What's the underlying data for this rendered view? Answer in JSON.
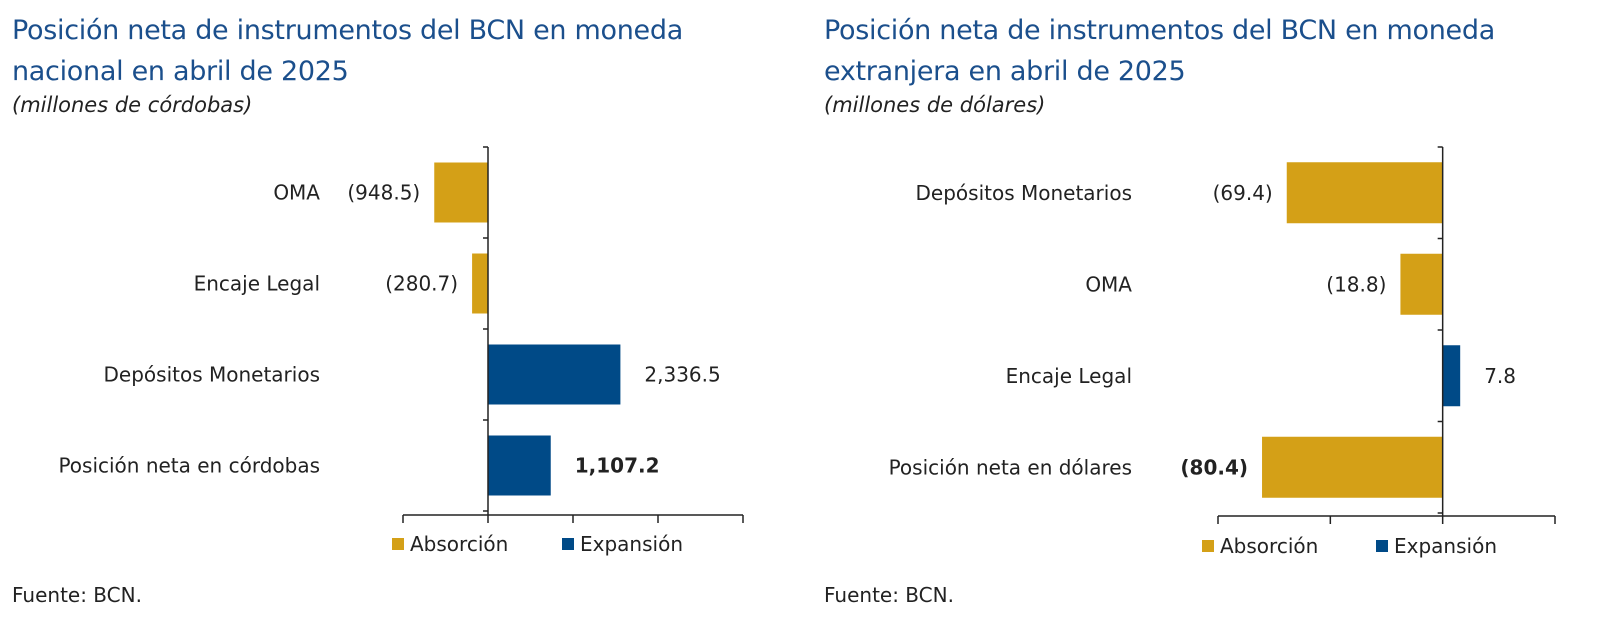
{
  "palette": {
    "absorcion": "#d4a017",
    "expansion": "#004a87",
    "axis": "#222222",
    "title": "#1b4f8c"
  },
  "panels": [
    {
      "title_line1": "Posición neta de instrumentos del BCN en moneda",
      "title_line2": "nacional en abril de 2025",
      "subtitle": "(millones de córdobas)",
      "source": "Fuente: BCN.",
      "legend": {
        "absorcion": "Absorción",
        "expansion": "Expansión"
      }
    },
    {
      "title_line1": "Posición neta de instrumentos del BCN en moneda",
      "title_line2": "extranjera en abril de 2025",
      "subtitle": "(millones de dólares)",
      "source": "Fuente: BCN.",
      "legend": {
        "absorcion": "Absorción",
        "expansion": "Expansión"
      }
    }
  ],
  "chart_data": [
    {
      "type": "bar",
      "orientation": "horizontal",
      "categories": [
        "OMA",
        "Encaje Legal",
        "Depósitos Monetarios",
        "Posición neta en córdobas"
      ],
      "values": [
        -948.5,
        -280.7,
        2336.5,
        1107.2
      ],
      "value_labels": [
        "(948.5)",
        "(280.7)",
        "2,336.5",
        "1,107.2"
      ],
      "bold_labels": [
        false,
        false,
        false,
        true
      ],
      "series": [
        {
          "name": "Absorción"
        },
        {
          "name": "Expansión"
        }
      ],
      "xlim": [
        -1500,
        4500
      ],
      "xticks": [
        -1500,
        0,
        1500,
        3000,
        4500
      ],
      "tick_labels_visible": false,
      "legend_position": "bottom"
    },
    {
      "type": "bar",
      "orientation": "horizontal",
      "categories": [
        "Depósitos Monetarios",
        "OMA",
        "Encaje Legal",
        "Posición neta en dólares"
      ],
      "values": [
        -69.4,
        -18.8,
        7.8,
        -80.4
      ],
      "value_labels": [
        "(69.4)",
        "(18.8)",
        "7.8",
        "(80.4)"
      ],
      "bold_labels": [
        false,
        false,
        false,
        true
      ],
      "series": [
        {
          "name": "Absorción"
        },
        {
          "name": "Expansión"
        }
      ],
      "xlim": [
        -100,
        50
      ],
      "xticks": [
        -100,
        -50,
        0,
        50
      ],
      "tick_labels_visible": false,
      "legend_position": "bottom"
    }
  ]
}
